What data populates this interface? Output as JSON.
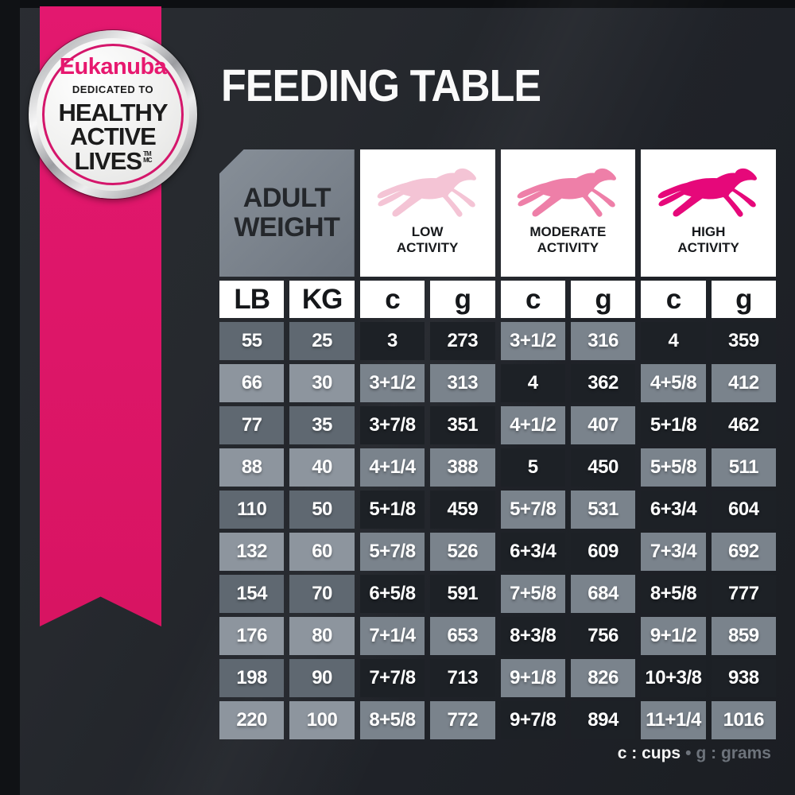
{
  "badge": {
    "brand": "Eukanuba",
    "dedicated": "DEDICATED TO",
    "line1": "HEALTHY",
    "line2": "ACTIVE",
    "line3": "LIVES",
    "tm": "TM",
    "mc": "MC"
  },
  "title": "FEEDING TABLE",
  "table": {
    "weight_header": {
      "line1": "ADULT",
      "line2": "WEIGHT"
    },
    "activity_columns": [
      {
        "line1": "LOW",
        "line2": "ACTIVITY",
        "dog_color": "#f4c4d5"
      },
      {
        "line1": "MODERATE",
        "line2": "ACTIVITY",
        "dog_color": "#ee7fa8"
      },
      {
        "line1": "HIGH",
        "line2": "ACTIVITY",
        "dog_color": "#e6087a"
      }
    ],
    "unit_headers": [
      "LB",
      "KG",
      "c",
      "g",
      "c",
      "g",
      "c",
      "g"
    ],
    "rows": [
      {
        "lb": "55",
        "kg": "25",
        "cells": [
          "3",
          "273",
          "3+1/2",
          "316",
          "4",
          "359"
        ]
      },
      {
        "lb": "66",
        "kg": "30",
        "cells": [
          "3+1/2",
          "313",
          "4",
          "362",
          "4+5/8",
          "412"
        ]
      },
      {
        "lb": "77",
        "kg": "35",
        "cells": [
          "3+7/8",
          "351",
          "4+1/2",
          "407",
          "5+1/8",
          "462"
        ]
      },
      {
        "lb": "88",
        "kg": "40",
        "cells": [
          "4+1/4",
          "388",
          "5",
          "450",
          "5+5/8",
          "511"
        ]
      },
      {
        "lb": "110",
        "kg": "50",
        "cells": [
          "5+1/8",
          "459",
          "5+7/8",
          "531",
          "6+3/4",
          "604"
        ]
      },
      {
        "lb": "132",
        "kg": "60",
        "cells": [
          "5+7/8",
          "526",
          "6+3/4",
          "609",
          "7+3/4",
          "692"
        ]
      },
      {
        "lb": "154",
        "kg": "70",
        "cells": [
          "6+5/8",
          "591",
          "7+5/8",
          "684",
          "8+5/8",
          "777"
        ]
      },
      {
        "lb": "176",
        "kg": "80",
        "cells": [
          "7+1/4",
          "653",
          "8+3/8",
          "756",
          "9+1/2",
          "859"
        ]
      },
      {
        "lb": "198",
        "kg": "90",
        "cells": [
          "7+7/8",
          "713",
          "9+1/8",
          "826",
          "10+3/8",
          "938"
        ]
      },
      {
        "lb": "220",
        "kg": "100",
        "cells": [
          "8+5/8",
          "772",
          "9+7/8",
          "894",
          "11+1/4",
          "1016"
        ]
      }
    ]
  },
  "legend": {
    "cups": "c : cups",
    "separator": "•",
    "grams": "g : grams"
  },
  "colors": {
    "ribbon": "#dc1565",
    "badge_ring": "#d4166b",
    "dark_cell": "#1d2126",
    "gray_cell": "#7a838c",
    "weight_cell_mid": "#5f6871",
    "weight_cell_light": "#8d959e",
    "header_bg": "#ffffff",
    "background": "#222529"
  }
}
